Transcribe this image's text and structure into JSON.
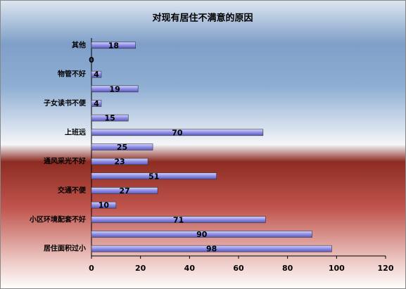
{
  "chart_data": {
    "type": "bar",
    "orientation": "horizontal",
    "title": "对现有居住不满意的原因",
    "categories": [
      "居住面积过小",
      null,
      "小区环境配套不好",
      null,
      "交通不便",
      null,
      "通风采光不好",
      null,
      "上班远",
      null,
      "子女读书不便",
      null,
      "物管不好",
      null,
      "其他"
    ],
    "values": [
      98,
      90,
      71,
      10,
      27,
      51,
      23,
      25,
      70,
      15,
      4,
      19,
      4,
      0,
      18
    ],
    "color": "#8f8fe8",
    "xlim": [
      0,
      120
    ],
    "xticks": [
      0,
      20,
      40,
      60,
      80,
      100,
      120
    ]
  }
}
